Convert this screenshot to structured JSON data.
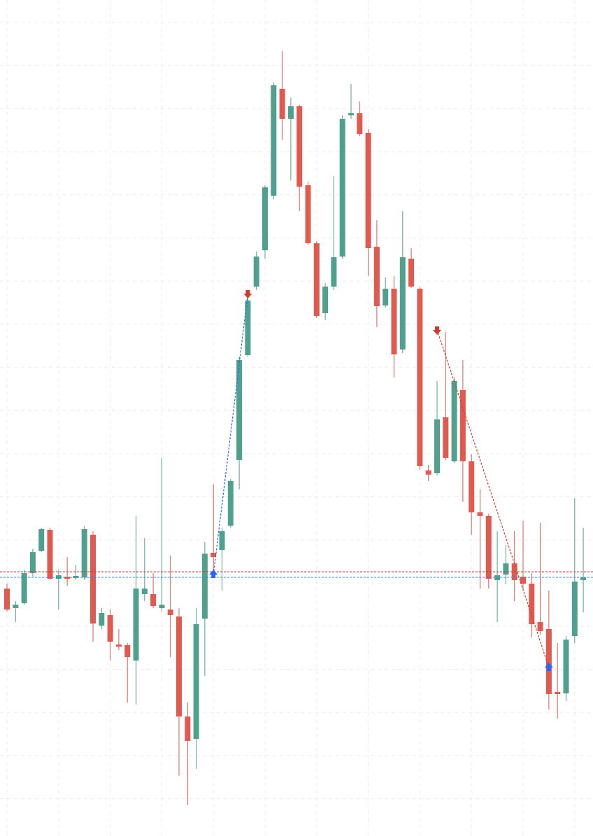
{
  "chart_data": {
    "type": "candlestick",
    "ylim": [
      0,
      1196
    ],
    "grid": true,
    "up_color": "#4fa08f",
    "down_color": "#e05a50",
    "open": [
      354,
      326,
      333,
      376,
      408,
      438,
      368,
      371,
      369,
      370,
      431,
      301,
      316,
      274,
      273,
      251,
      346,
      346,
      326,
      324,
      314,
      171,
      139,
      311,
      405,
      409,
      444,
      538,
      688,
      786,
      838,
      916,
      1069,
      1026,
      1044,
      931,
      848,
      748,
      786,
      829,
      1031,
      1034,
      1006,
      843,
      759,
      783,
      696,
      826,
      783,
      523,
      519,
      599,
      536,
      638,
      536,
      463,
      458,
      366,
      374,
      390,
      371,
      361,
      306,
      296,
      206,
      204,
      286,
      366
    ],
    "high": [
      361,
      336,
      381,
      411,
      441,
      441,
      381,
      399,
      388,
      444,
      436,
      326,
      324,
      296,
      276,
      458,
      426,
      376,
      541,
      401,
      326,
      191,
      326,
      421,
      503,
      441,
      511,
      686,
      771,
      836,
      931,
      1078,
      1123,
      1056,
      1046,
      936,
      851,
      791,
      944,
      1031,
      1076,
      1051,
      1011,
      881,
      799,
      801,
      894,
      841,
      786,
      531,
      651,
      721,
      656,
      681,
      546,
      496,
      461,
      436,
      416,
      436,
      451,
      376,
      448,
      351,
      276,
      286,
      483,
      441
    ],
    "low": [
      321,
      306,
      331,
      371,
      406,
      366,
      324,
      358,
      366,
      366,
      278,
      296,
      251,
      266,
      191,
      188,
      336,
      326,
      321,
      256,
      86,
      44,
      96,
      229,
      376,
      351,
      441,
      496,
      686,
      781,
      826,
      911,
      996,
      938,
      894,
      846,
      741,
      738,
      781,
      826,
      1026,
      1001,
      801,
      728,
      756,
      656,
      691,
      784,
      524,
      508,
      516,
      538,
      534,
      478,
      431,
      354,
      354,
      306,
      361,
      336,
      351,
      284,
      288,
      181,
      168,
      193,
      276,
      320
    ],
    "close": [
      324,
      331,
      376,
      406,
      439,
      368,
      373,
      368,
      372,
      439,
      304,
      319,
      278,
      271,
      256,
      354,
      354,
      329,
      331,
      316,
      171,
      136,
      303,
      404,
      399,
      436,
      508,
      681,
      766,
      829,
      928,
      1074,
      1026,
      1044,
      929,
      848,
      744,
      786,
      828,
      1026,
      1034,
      1004,
      841,
      758,
      783,
      689,
      828,
      786,
      529,
      517,
      596,
      541,
      651,
      536,
      463,
      458,
      368,
      373,
      390,
      366,
      361,
      303,
      293,
      203,
      203,
      281,
      364,
      370
    ],
    "hlines": [
      {
        "value": 378,
        "color": "#d32f2f"
      },
      {
        "value": 370,
        "color": "#1e88e5"
      }
    ],
    "signals": [
      {
        "index": 24,
        "price": 374,
        "color": "#2962ff",
        "direction": "up"
      },
      {
        "index": 28,
        "price": 776,
        "color": "#d13b2e",
        "direction": "down"
      },
      {
        "index": 50,
        "price": 724,
        "color": "#d13b2e",
        "direction": "down"
      },
      {
        "index": 63,
        "price": 241,
        "color": "#2962ff",
        "direction": "up"
      }
    ]
  }
}
